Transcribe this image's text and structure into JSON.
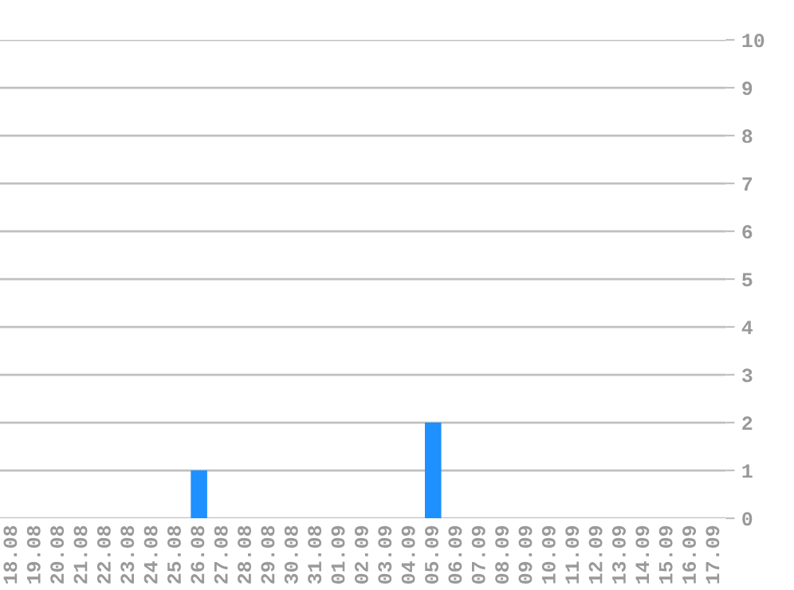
{
  "chart_data": {
    "type": "bar",
    "categories": [
      "18.08",
      "19.08",
      "20.08",
      "21.08",
      "22.08",
      "23.08",
      "24.08",
      "25.08",
      "26.08",
      "27.08",
      "28.08",
      "29.08",
      "30.08",
      "31.08",
      "01.09",
      "02.09",
      "03.09",
      "04.09",
      "05.09",
      "06.09",
      "07.09",
      "08.09",
      "09.09",
      "10.09",
      "11.09",
      "12.09",
      "13.09",
      "14.09",
      "15.09",
      "16.09",
      "17.09"
    ],
    "values": [
      0,
      0,
      0,
      0,
      0,
      0,
      0,
      0,
      1,
      0,
      0,
      0,
      0,
      0,
      0,
      0,
      0,
      0,
      2,
      0,
      0,
      0,
      0,
      0,
      0,
      0,
      0,
      0,
      0,
      0,
      0
    ],
    "color": "#1e90ff",
    "ylim": [
      0,
      10
    ],
    "yticks": [
      0,
      1,
      2,
      3,
      4,
      5,
      6,
      7,
      8,
      9,
      10
    ],
    "grid": "y"
  }
}
